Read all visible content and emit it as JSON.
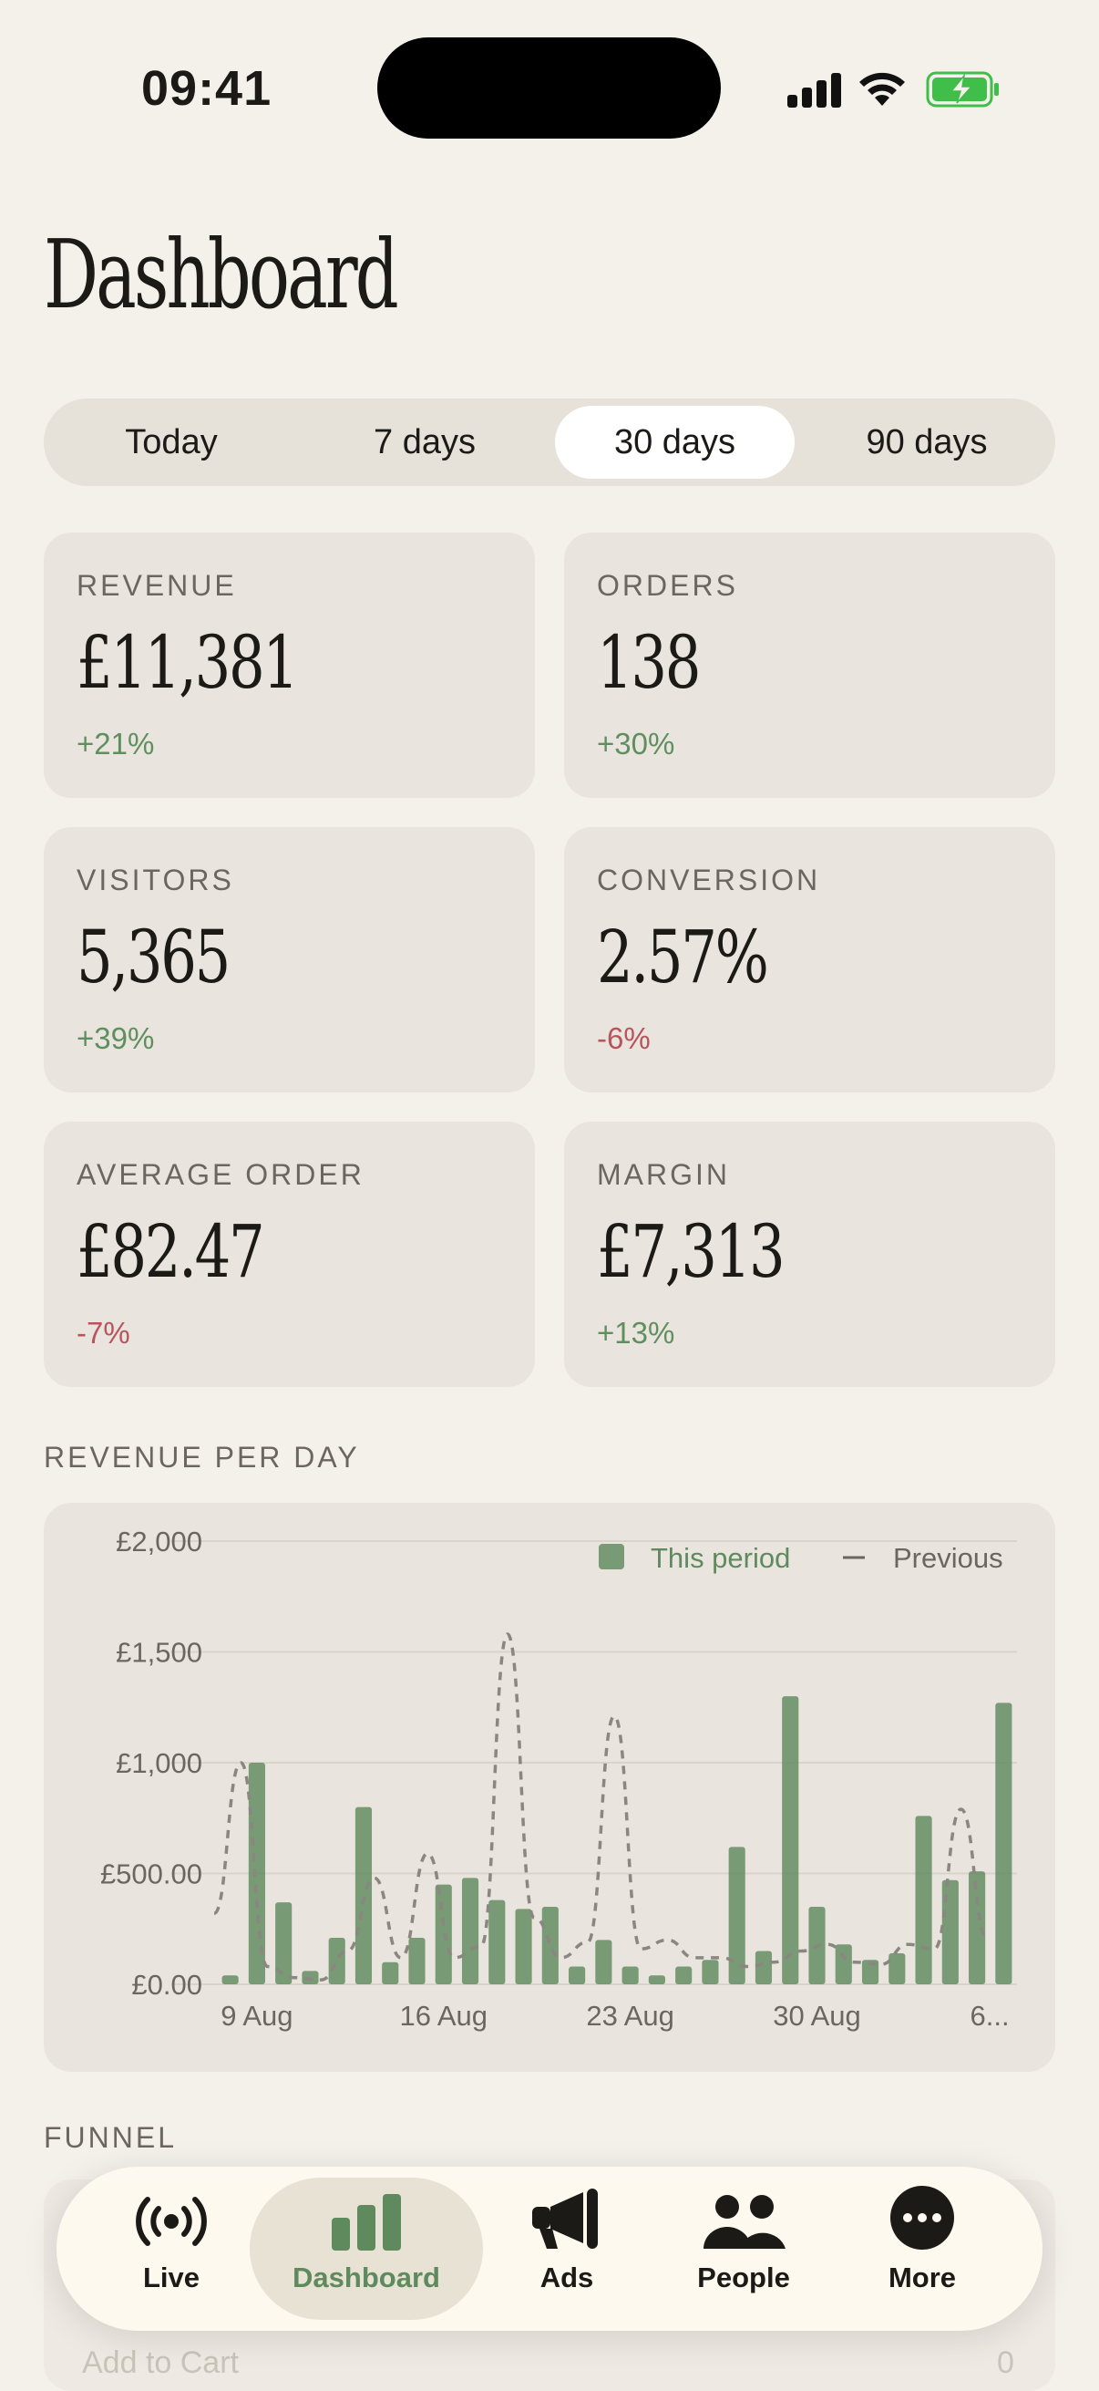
{
  "status_bar": {
    "time": "09:41"
  },
  "header": {
    "title": "Dashboard"
  },
  "periods": {
    "items": [
      "Today",
      "7 days",
      "30 days",
      "90 days"
    ],
    "selected": "30 days"
  },
  "metrics": [
    {
      "label": "REVENUE",
      "value": "£11,381",
      "delta": "+21%",
      "trend": "up"
    },
    {
      "label": "ORDERS",
      "value": "138",
      "delta": "+30%",
      "trend": "up"
    },
    {
      "label": "VISITORS",
      "value": "5,365",
      "delta": "+39%",
      "trend": "up"
    },
    {
      "label": "CONVERSION",
      "value": "2.57%",
      "delta": "-6%",
      "trend": "down"
    },
    {
      "label": "AVERAGE ORDER",
      "value": "£82.47",
      "delta": "-7%",
      "trend": "down"
    },
    {
      "label": "MARGIN",
      "value": "£7,313",
      "delta": "+13%",
      "trend": "up"
    }
  ],
  "revenue_section": {
    "label": "REVENUE PER DAY"
  },
  "chart_data": {
    "type": "bar",
    "title": "REVENUE PER DAY",
    "ylim": [
      0,
      2000
    ],
    "y_ticks": [
      "£2,000",
      "£1,500",
      "£1,000",
      "£500.00",
      "£0.00"
    ],
    "x_tick_labels": [
      "9 Aug",
      "16 Aug",
      "23 Aug",
      "30 Aug",
      "6..."
    ],
    "categories": [
      "8 Aug",
      "9 Aug",
      "10 Aug",
      "11 Aug",
      "12 Aug",
      "13 Aug",
      "14 Aug",
      "15 Aug",
      "16 Aug",
      "17 Aug",
      "18 Aug",
      "19 Aug",
      "20 Aug",
      "21 Aug",
      "22 Aug",
      "23 Aug",
      "24 Aug",
      "25 Aug",
      "26 Aug",
      "27 Aug",
      "28 Aug",
      "29 Aug",
      "30 Aug",
      "31 Aug",
      "1 Sep",
      "2 Sep",
      "3 Sep",
      "4 Sep",
      "5 Sep",
      "6 Sep"
    ],
    "series": [
      {
        "name": "This period",
        "type": "bar",
        "color": "#5f8a5f",
        "values": [
          40,
          1000,
          370,
          60,
          210,
          800,
          100,
          210,
          450,
          480,
          380,
          340,
          350,
          80,
          200,
          80,
          40,
          80,
          110,
          620,
          150,
          1300,
          350,
          180,
          110,
          140,
          760,
          470,
          510,
          1270
        ]
      },
      {
        "name": "Previous",
        "type": "line",
        "style": "dashed",
        "color": "#8a8680",
        "values": [
          320,
          1000,
          80,
          30,
          20,
          150,
          480,
          120,
          590,
          120,
          170,
          1580,
          300,
          120,
          190,
          1210,
          160,
          200,
          120,
          120,
          80,
          100,
          150,
          180,
          100,
          90,
          180,
          160,
          790,
          200
        ]
      }
    ],
    "legend": {
      "position": "top-right",
      "current": "This period",
      "previous": "Previous"
    },
    "grid": true
  },
  "funnel_section": {
    "label": "FUNNEL",
    "row_label": "Add to Cart",
    "row_value": "0"
  },
  "tabbar": {
    "items": [
      {
        "label": "Live",
        "icon": "broadcast-icon"
      },
      {
        "label": "Dashboard",
        "icon": "bar-chart-icon"
      },
      {
        "label": "Ads",
        "icon": "megaphone-icon"
      },
      {
        "label": "People",
        "icon": "people-icon"
      },
      {
        "label": "More",
        "icon": "ellipsis-icon"
      }
    ],
    "selected": "Dashboard"
  },
  "colors": {
    "accent": "#5f8a5f",
    "negative": "#b8545c",
    "background": "#f4f1eb",
    "card": "#e9e5de"
  }
}
